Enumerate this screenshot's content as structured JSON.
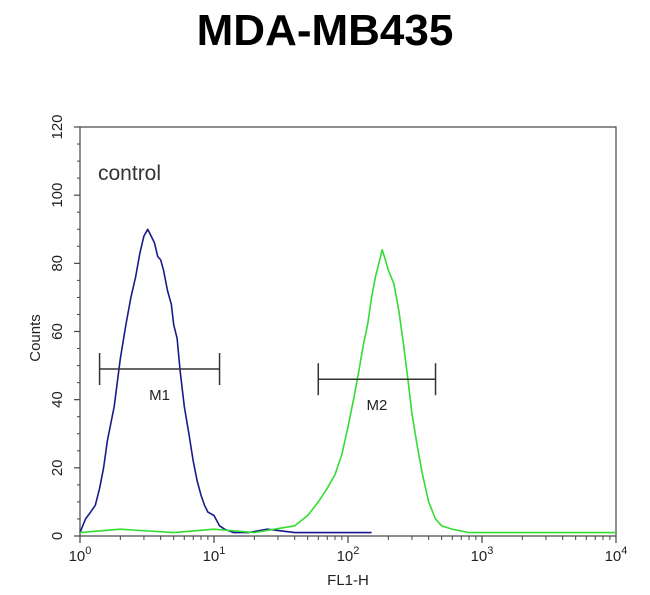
{
  "chart_data": {
    "type": "line",
    "title": "MDA-MB435",
    "xlabel": "FL1-H",
    "ylabel": "Counts",
    "x_scale": "log",
    "xlim": [
      1,
      10000
    ],
    "ylim": [
      0,
      120
    ],
    "y_ticks": [
      "0",
      "20",
      "40",
      "60",
      "80",
      "100",
      "120"
    ],
    "x_ticks": [
      {
        "base": "10",
        "exp": "0",
        "value": 1
      },
      {
        "base": "10",
        "exp": "1",
        "value": 10
      },
      {
        "base": "10",
        "exp": "2",
        "value": 100
      },
      {
        "base": "10",
        "exp": "3",
        "value": 1000
      },
      {
        "base": "10",
        "exp": "4",
        "value": 10000
      }
    ],
    "annotation": "control",
    "grid": false,
    "series": [
      {
        "color": "#1a1a8c",
        "x": [
          1.0,
          1.1,
          1.2,
          1.3,
          1.4,
          1.5,
          1.6,
          1.8,
          2.0,
          2.2,
          2.4,
          2.6,
          2.8,
          3.0,
          3.2,
          3.4,
          3.6,
          3.8,
          4.0,
          4.2,
          4.5,
          4.8,
          5.0,
          5.3,
          5.6,
          6.0,
          6.5,
          7.0,
          7.5,
          8.0,
          8.5,
          9.0,
          10.0,
          11.0,
          12.0,
          14.0,
          18.0,
          25.0,
          40.0,
          60.0,
          100.0,
          150.0
        ],
        "y": [
          1,
          5,
          7,
          9,
          14,
          20,
          28,
          38,
          52,
          62,
          70,
          76,
          83,
          88,
          90,
          88,
          86,
          82,
          81,
          78,
          72,
          68,
          62,
          58,
          48,
          38,
          30,
          22,
          16,
          12,
          9,
          7,
          6,
          3,
          2,
          1,
          1,
          2,
          1,
          1,
          1,
          1
        ]
      },
      {
        "color": "#33dd33",
        "x": [
          1.0,
          2.0,
          5.0,
          10.0,
          20.0,
          40.0,
          50.0,
          60.0,
          70.0,
          80.0,
          90.0,
          100.0,
          110.0,
          120.0,
          130.0,
          140.0,
          150.0,
          160.0,
          170.0,
          180.0,
          190.0,
          200.0,
          220.0,
          240.0,
          260.0,
          280.0,
          300.0,
          330.0,
          360.0,
          400.0,
          450.0,
          500.0,
          600.0,
          800.0,
          1000.0,
          2000.0,
          5000.0,
          10000.0
        ],
        "y": [
          1,
          2,
          1,
          2,
          1,
          3,
          6,
          10,
          14,
          18,
          24,
          32,
          40,
          48,
          56,
          62,
          70,
          76,
          80,
          84,
          81,
          78,
          74,
          66,
          56,
          46,
          36,
          26,
          18,
          10,
          5,
          3,
          2,
          1,
          1,
          1,
          1,
          1
        ]
      }
    ],
    "markers": [
      {
        "label": "M1",
        "x_range": [
          1.4,
          11
        ],
        "y": 49
      },
      {
        "label": "M2",
        "x_range": [
          60,
          450
        ],
        "y": 46
      }
    ]
  }
}
